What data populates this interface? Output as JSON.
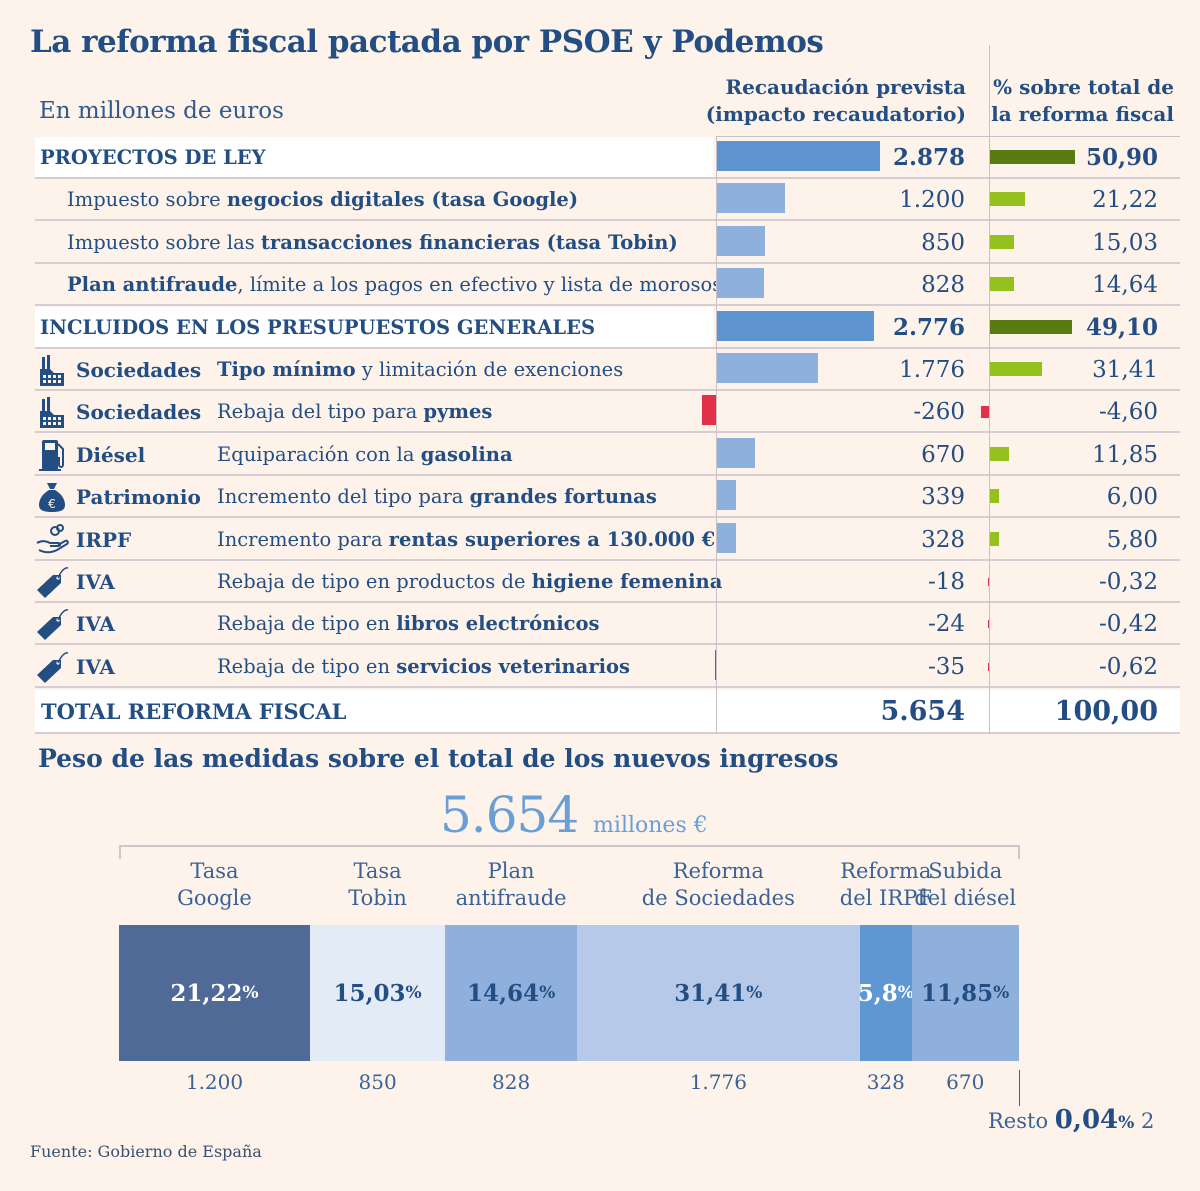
{
  "title": "La reforma fiscal pactada por PSOE y Podemos",
  "units": "En millones de euros",
  "col1_header": [
    "Recaudación prevista",
    "(impacto recaudatorio)"
  ],
  "col2_header": [
    "% sobre total de",
    "la reforma fiscal"
  ],
  "colors": {
    "text": "#234e83",
    "group_bar": "#5e95d0",
    "item_bar": "#8db0dd",
    "negative": "#e0304a",
    "group_pct": "#5a7a12",
    "item_pct": "#95c11f"
  },
  "chart_data": {
    "type": "table",
    "rows": [
      {
        "group": true,
        "label": [
          {
            "t": "PROYECTOS DE LEY",
            "b": true
          }
        ],
        "value": 2878,
        "value_text": "2.878",
        "pct": 50.9,
        "pct_text": "50,90"
      },
      {
        "label": [
          {
            "t": "Impuesto sobre "
          },
          {
            "t": "negocios digitales (tasa Google)",
            "b": true
          }
        ],
        "value": 1200,
        "value_text": "1.200",
        "pct": 21.22,
        "pct_text": "21,22"
      },
      {
        "label": [
          {
            "t": "Impuesto sobre las "
          },
          {
            "t": "transacciones financieras (tasa Tobin)",
            "b": true
          }
        ],
        "value": 850,
        "value_text": "850",
        "pct": 15.03,
        "pct_text": "15,03"
      },
      {
        "label": [
          {
            "t": "Plan antifraude",
            "b": true
          },
          {
            "t": ", límite a los pagos en efectivo y lista de morosos"
          }
        ],
        "value": 828,
        "value_text": "828",
        "pct": 14.64,
        "pct_text": "14,64"
      },
      {
        "group": true,
        "label": [
          {
            "t": "INCLUIDOS EN LOS PRESUPUESTOS GENERALES",
            "b": true
          }
        ],
        "value": 2776,
        "value_text": "2.776",
        "pct": 49.1,
        "pct_text": "49,10"
      },
      {
        "icon": "factory-icon",
        "category": "Sociedades",
        "label": [
          {
            "t": "Tipo mínimo",
            "b": true
          },
          {
            "t": " y limitación de exenciones"
          }
        ],
        "value": 1776,
        "value_text": "1.776",
        "pct": 31.41,
        "pct_text": "31,41"
      },
      {
        "icon": "factory-icon",
        "category": "Sociedades",
        "label": [
          {
            "t": "Rebaja del tipo para "
          },
          {
            "t": "pymes",
            "b": true
          }
        ],
        "value": -260,
        "value_text": "-260",
        "pct": -4.6,
        "pct_text": "-4,60"
      },
      {
        "icon": "fuel-pump-icon",
        "category": "Diésel",
        "label": [
          {
            "t": "Equiparación con la "
          },
          {
            "t": "gasolina",
            "b": true
          }
        ],
        "value": 670,
        "value_text": "670",
        "pct": 11.85,
        "pct_text": "11,85"
      },
      {
        "icon": "money-bag-icon",
        "category": "Patrimonio",
        "label": [
          {
            "t": "Incremento del tipo para "
          },
          {
            "t": "grandes fortunas",
            "b": true
          }
        ],
        "value": 339,
        "value_text": "339",
        "pct": 6.0,
        "pct_text": "6,00"
      },
      {
        "icon": "hand-coins-icon",
        "category": "IRPF",
        "label": [
          {
            "t": "Incremento para "
          },
          {
            "t": "rentas superiores a 130.000 €",
            "b": true
          }
        ],
        "value": 328,
        "value_text": "328",
        "pct": 5.8,
        "pct_text": "5,80"
      },
      {
        "icon": "price-tag-icon",
        "category": "IVA",
        "label": [
          {
            "t": "Rebaja de tipo en productos de "
          },
          {
            "t": "higiene femenina",
            "b": true
          }
        ],
        "value": -18,
        "value_text": "-18",
        "pct": -0.32,
        "pct_text": "-0,32"
      },
      {
        "icon": "price-tag-icon",
        "category": "IVA",
        "label": [
          {
            "t": "Rebaja de tipo en "
          },
          {
            "t": "libros electrónicos",
            "b": true
          }
        ],
        "value": -24,
        "value_text": "-24",
        "pct": -0.42,
        "pct_text": "-0,42"
      },
      {
        "icon": "price-tag-icon",
        "category": "IVA",
        "label": [
          {
            "t": "Rebaja de tipo en "
          },
          {
            "t": "servicios veterinarios",
            "b": true
          }
        ],
        "value": -35,
        "value_text": "-35",
        "pct": -0.62,
        "pct_text": "-0,62"
      }
    ],
    "total": {
      "label": "TOTAL REFORMA FISCAL",
      "value_text": "5.654",
      "pct_text": "100,00"
    }
  },
  "breakdown": {
    "title": "Peso de las medidas sobre el total de los nuevos ingresos",
    "total_value": "5.654",
    "total_unit": "millones €",
    "segments": [
      {
        "label": [
          "Tasa",
          "Google"
        ],
        "pct": 21.22,
        "pct_text": "21,22",
        "value_text": "1.200",
        "color": "#4f6a96",
        "text_color": "#ffffff"
      },
      {
        "label": [
          "Tasa",
          "Tobin"
        ],
        "pct": 15.03,
        "pct_text": "15,03",
        "value_text": "850",
        "color": "#e3ebf6",
        "text_color": "#234e83"
      },
      {
        "label": [
          "Plan",
          "antifraude"
        ],
        "pct": 14.64,
        "pct_text": "14,64",
        "value_text": "828",
        "color": "#8fb0dc",
        "text_color": "#234e83"
      },
      {
        "label": [
          "Reforma",
          "de Sociedades"
        ],
        "pct": 31.41,
        "pct_text": "31,41",
        "value_text": "1.776",
        "color": "#b6c9e8",
        "text_color": "#234e83"
      },
      {
        "label": [
          "Reforma",
          "del IRPF"
        ],
        "pct": 5.8,
        "pct_text": "5,8",
        "value_text": "328",
        "color": "#5f97d2",
        "text_color": "#ffffff"
      },
      {
        "label": [
          "Subida",
          "del diésel"
        ],
        "pct": 11.85,
        "pct_text": "11,85",
        "value_text": "670",
        "color": "#8fb0dc",
        "text_color": "#234e83"
      }
    ],
    "percent_sign": "%",
    "rest": {
      "label": "Resto",
      "pct_text": "0,04",
      "value_text": "2"
    }
  },
  "source": "Fuente: Gobierno de España"
}
